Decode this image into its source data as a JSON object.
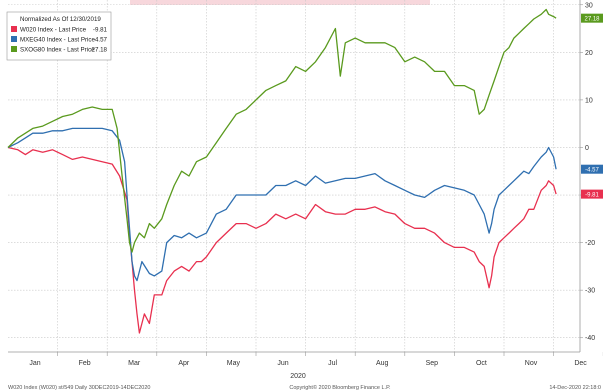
{
  "chart_data": {
    "type": "line",
    "legend": {
      "title": "Normalized As Of 12/30/2019",
      "placement": "top-left",
      "entries": [
        {
          "label": "W020 Index - Last Price",
          "value": "-9.81",
          "color": "#e8304f"
        },
        {
          "label": "MXEG40 Index - Last Price",
          "value": "-4.57",
          "color": "#2f6fb0"
        },
        {
          "label": "SXOG80 Index - Last Price",
          "value": "27.18",
          "color": "#5a9a1e"
        }
      ]
    },
    "x_axis": {
      "months": [
        "Jan",
        "Feb",
        "Mar",
        "Apr",
        "May",
        "Jun",
        "Jul",
        "Aug",
        "Sep",
        "Oct",
        "Nov",
        "Dec"
      ],
      "year": "2020"
    },
    "y_axis": {
      "ticks": [
        30,
        20,
        10,
        0,
        -10,
        -20,
        -30,
        -40
      ],
      "ylim": [
        -43,
        31
      ],
      "grid": true,
      "side": "right"
    },
    "series": [
      {
        "name": "W020 Index - Last Price",
        "color": "#e8304f",
        "end_label": "-9.81",
        "points": [
          [
            0,
            0
          ],
          [
            0.2,
            -0.5
          ],
          [
            0.35,
            -1.5
          ],
          [
            0.5,
            -0.5
          ],
          [
            0.7,
            -1
          ],
          [
            0.9,
            -0.5
          ],
          [
            1.1,
            -1.5
          ],
          [
            1.3,
            -2.5
          ],
          [
            1.5,
            -2
          ],
          [
            1.7,
            -2.5
          ],
          [
            1.9,
            -3
          ],
          [
            2.1,
            -3.5
          ],
          [
            2.25,
            -6
          ],
          [
            2.4,
            -11
          ],
          [
            2.45,
            -18
          ],
          [
            2.5,
            -24
          ],
          [
            2.55,
            -30
          ],
          [
            2.6,
            -35
          ],
          [
            2.65,
            -39
          ],
          [
            2.75,
            -35
          ],
          [
            2.85,
            -37
          ],
          [
            2.95,
            -31
          ],
          [
            3.1,
            -31
          ],
          [
            3.2,
            -28
          ],
          [
            3.35,
            -26
          ],
          [
            3.5,
            -25
          ],
          [
            3.65,
            -26
          ],
          [
            3.8,
            -24
          ],
          [
            3.9,
            -24
          ],
          [
            4.0,
            -23
          ],
          [
            4.2,
            -20
          ],
          [
            4.4,
            -18
          ],
          [
            4.6,
            -16
          ],
          [
            4.8,
            -16
          ],
          [
            5.0,
            -17
          ],
          [
            5.2,
            -16
          ],
          [
            5.4,
            -14
          ],
          [
            5.6,
            -15
          ],
          [
            5.8,
            -14
          ],
          [
            6.0,
            -15
          ],
          [
            6.2,
            -12
          ],
          [
            6.4,
            -13.5
          ],
          [
            6.6,
            -14
          ],
          [
            6.8,
            -14
          ],
          [
            7.0,
            -13
          ],
          [
            7.2,
            -13
          ],
          [
            7.4,
            -12.5
          ],
          [
            7.6,
            -13.5
          ],
          [
            7.8,
            -14
          ],
          [
            8.0,
            -16
          ],
          [
            8.2,
            -17
          ],
          [
            8.4,
            -17
          ],
          [
            8.6,
            -18
          ],
          [
            8.8,
            -20
          ],
          [
            9.0,
            -21
          ],
          [
            9.2,
            -21
          ],
          [
            9.4,
            -22
          ],
          [
            9.5,
            -24
          ],
          [
            9.6,
            -25
          ],
          [
            9.7,
            -29.5
          ],
          [
            9.75,
            -27
          ],
          [
            9.8,
            -23
          ],
          [
            9.9,
            -20
          ],
          [
            10.0,
            -19
          ],
          [
            10.1,
            -18
          ],
          [
            10.2,
            -17
          ],
          [
            10.3,
            -16
          ],
          [
            10.4,
            -15
          ],
          [
            10.5,
            -13
          ],
          [
            10.6,
            -13
          ],
          [
            10.75,
            -9
          ],
          [
            10.85,
            -8
          ],
          [
            10.9,
            -7
          ],
          [
            11.0,
            -8
          ],
          [
            11.05,
            -9.81
          ]
        ]
      },
      {
        "name": "MXEG40 Index - Last Price",
        "color": "#2f6fb0",
        "end_label": "-4.57",
        "points": [
          [
            0,
            0
          ],
          [
            0.2,
            1
          ],
          [
            0.35,
            2
          ],
          [
            0.5,
            3
          ],
          [
            0.7,
            3
          ],
          [
            0.9,
            3.5
          ],
          [
            1.1,
            3.5
          ],
          [
            1.3,
            4
          ],
          [
            1.5,
            4
          ],
          [
            1.7,
            4
          ],
          [
            1.9,
            4
          ],
          [
            2.1,
            3.5
          ],
          [
            2.25,
            1.5
          ],
          [
            2.35,
            -3
          ],
          [
            2.4,
            -10
          ],
          [
            2.45,
            -17
          ],
          [
            2.5,
            -24
          ],
          [
            2.55,
            -27
          ],
          [
            2.6,
            -28
          ],
          [
            2.7,
            -24
          ],
          [
            2.85,
            -26.5
          ],
          [
            2.95,
            -27
          ],
          [
            3.1,
            -26
          ],
          [
            3.2,
            -20
          ],
          [
            3.35,
            -18.5
          ],
          [
            3.5,
            -19
          ],
          [
            3.65,
            -18
          ],
          [
            3.8,
            -19
          ],
          [
            4.0,
            -18
          ],
          [
            4.2,
            -14
          ],
          [
            4.4,
            -13
          ],
          [
            4.6,
            -10
          ],
          [
            4.8,
            -10
          ],
          [
            5.0,
            -10
          ],
          [
            5.2,
            -10
          ],
          [
            5.4,
            -8
          ],
          [
            5.6,
            -8
          ],
          [
            5.8,
            -7
          ],
          [
            6.0,
            -8
          ],
          [
            6.2,
            -6
          ],
          [
            6.4,
            -7.5
          ],
          [
            6.6,
            -7
          ],
          [
            6.8,
            -6.5
          ],
          [
            7.0,
            -6.5
          ],
          [
            7.2,
            -6
          ],
          [
            7.4,
            -5.5
          ],
          [
            7.6,
            -7
          ],
          [
            7.8,
            -8
          ],
          [
            8.0,
            -9
          ],
          [
            8.2,
            -10
          ],
          [
            8.4,
            -10.5
          ],
          [
            8.6,
            -9
          ],
          [
            8.8,
            -8
          ],
          [
            9.0,
            -8.5
          ],
          [
            9.2,
            -9
          ],
          [
            9.4,
            -10
          ],
          [
            9.5,
            -12
          ],
          [
            9.6,
            -14
          ],
          [
            9.7,
            -18
          ],
          [
            9.75,
            -16
          ],
          [
            9.8,
            -13
          ],
          [
            9.9,
            -10
          ],
          [
            10.0,
            -9
          ],
          [
            10.1,
            -8
          ],
          [
            10.2,
            -7
          ],
          [
            10.3,
            -6
          ],
          [
            10.4,
            -5
          ],
          [
            10.5,
            -5.5
          ],
          [
            10.6,
            -4
          ],
          [
            10.75,
            -2
          ],
          [
            10.85,
            -1
          ],
          [
            10.9,
            0
          ],
          [
            11.0,
            -2
          ],
          [
            11.05,
            -4.57
          ]
        ]
      },
      {
        "name": "SXOG80 Index - Last Price",
        "color": "#5a9a1e",
        "end_label": "27.18",
        "points": [
          [
            0,
            0
          ],
          [
            0.2,
            2
          ],
          [
            0.35,
            3
          ],
          [
            0.5,
            4
          ],
          [
            0.7,
            4.5
          ],
          [
            0.9,
            5.5
          ],
          [
            1.1,
            6.5
          ],
          [
            1.3,
            7
          ],
          [
            1.5,
            8
          ],
          [
            1.7,
            8.5
          ],
          [
            1.9,
            8
          ],
          [
            2.1,
            8
          ],
          [
            2.2,
            4
          ],
          [
            2.3,
            -6
          ],
          [
            2.4,
            -15
          ],
          [
            2.45,
            -20
          ],
          [
            2.5,
            -22
          ],
          [
            2.55,
            -20
          ],
          [
            2.65,
            -18
          ],
          [
            2.75,
            -19
          ],
          [
            2.85,
            -16
          ],
          [
            2.95,
            -17
          ],
          [
            3.1,
            -15
          ],
          [
            3.2,
            -12
          ],
          [
            3.35,
            -8
          ],
          [
            3.5,
            -5
          ],
          [
            3.65,
            -6
          ],
          [
            3.8,
            -3
          ],
          [
            4.0,
            -2
          ],
          [
            4.2,
            1
          ],
          [
            4.4,
            4
          ],
          [
            4.6,
            7
          ],
          [
            4.8,
            8
          ],
          [
            5.0,
            10
          ],
          [
            5.2,
            12
          ],
          [
            5.4,
            13
          ],
          [
            5.6,
            14
          ],
          [
            5.8,
            17
          ],
          [
            6.0,
            16
          ],
          [
            6.2,
            18
          ],
          [
            6.4,
            21
          ],
          [
            6.6,
            25
          ],
          [
            6.7,
            15
          ],
          [
            6.8,
            22
          ],
          [
            7.0,
            23
          ],
          [
            7.2,
            22
          ],
          [
            7.4,
            22
          ],
          [
            7.6,
            22
          ],
          [
            7.8,
            21
          ],
          [
            8.0,
            18
          ],
          [
            8.2,
            19
          ],
          [
            8.4,
            18
          ],
          [
            8.6,
            16
          ],
          [
            8.8,
            16
          ],
          [
            9.0,
            13
          ],
          [
            9.2,
            13
          ],
          [
            9.4,
            12
          ],
          [
            9.5,
            7
          ],
          [
            9.6,
            8
          ],
          [
            9.7,
            11
          ],
          [
            9.8,
            14
          ],
          [
            9.9,
            17
          ],
          [
            10.0,
            20
          ],
          [
            10.1,
            21
          ],
          [
            10.2,
            23
          ],
          [
            10.3,
            24
          ],
          [
            10.4,
            25
          ],
          [
            10.5,
            26
          ],
          [
            10.6,
            27
          ],
          [
            10.75,
            28
          ],
          [
            10.85,
            29
          ],
          [
            10.9,
            28
          ],
          [
            11.0,
            27.5
          ],
          [
            11.05,
            27.18
          ]
        ]
      }
    ]
  },
  "footer": {
    "left": "W020 Index (W020) st/549  Daily 30DEC2019-14DEC2020",
    "center": "Copyright© 2020 Bloomberg Finance L.P.",
    "right": "14-Dec-2020 22:18:0"
  }
}
